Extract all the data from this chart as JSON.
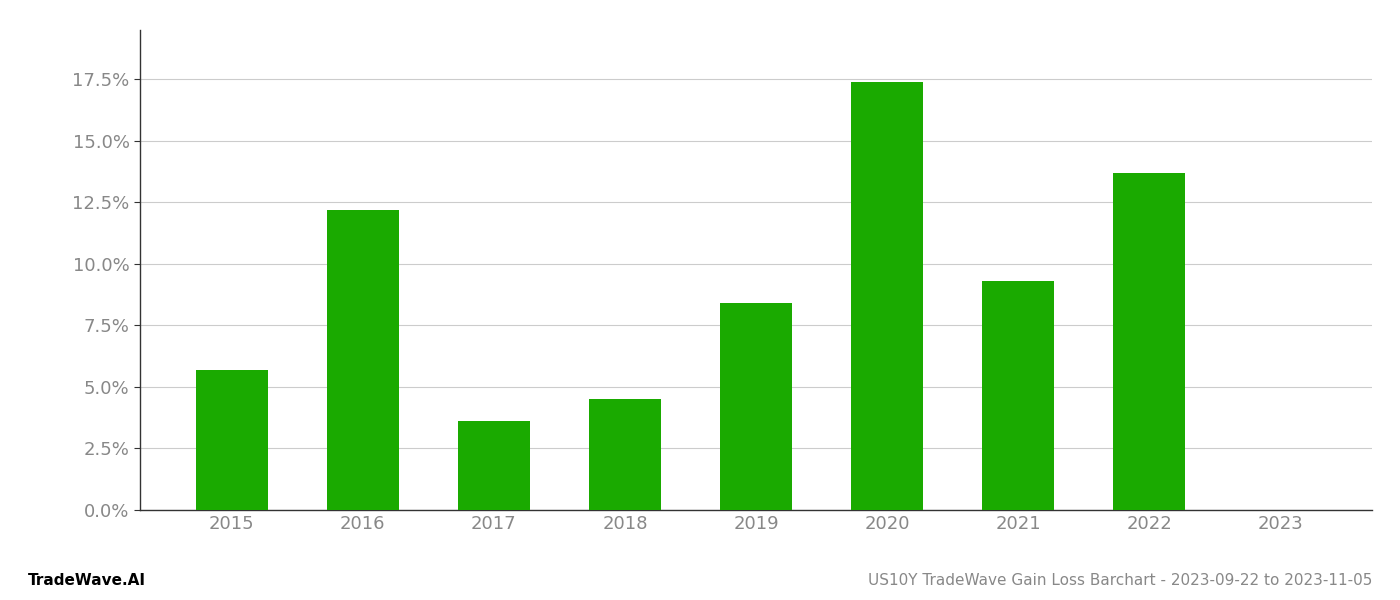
{
  "categories": [
    "2015",
    "2016",
    "2017",
    "2018",
    "2019",
    "2020",
    "2021",
    "2022",
    "2023"
  ],
  "values": [
    0.057,
    0.122,
    0.036,
    0.045,
    0.084,
    0.174,
    0.093,
    0.137,
    null
  ],
  "bar_color": "#1aaa00",
  "background_color": "#ffffff",
  "ylim": [
    0,
    0.195
  ],
  "yticks": [
    0.0,
    0.025,
    0.05,
    0.075,
    0.1,
    0.125,
    0.15,
    0.175
  ],
  "ytick_labels": [
    "0.0%",
    "2.5%",
    "5.0%",
    "7.5%",
    "10.0%",
    "12.5%",
    "15.0%",
    "17.5%"
  ],
  "footer_left": "TradeWave.AI",
  "footer_right": "US10Y TradeWave Gain Loss Barchart - 2023-09-22 to 2023-11-05",
  "grid_color": "#cccccc",
  "axis_label_color": "#888888",
  "footer_left_color": "#000000",
  "footer_right_color": "#888888",
  "footer_font_size": 11,
  "bar_width": 0.55,
  "spine_color": "#333333"
}
